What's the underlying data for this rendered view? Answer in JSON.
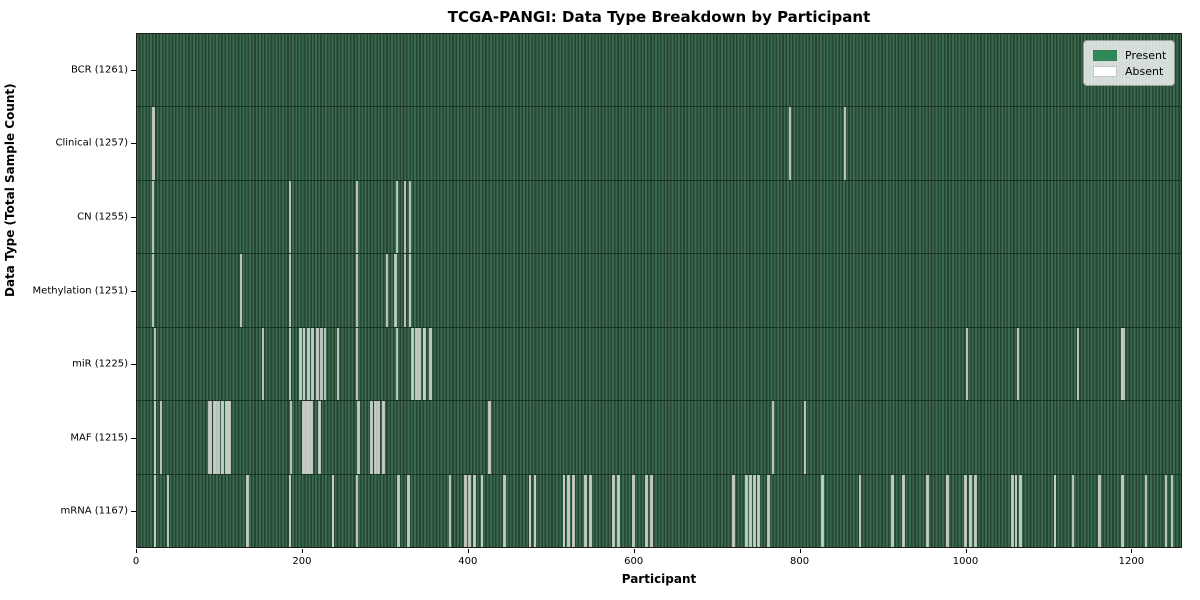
{
  "title": "TCGA-PANGI: Data Type Breakdown by Participant",
  "axes": {
    "xlabel": "Participant",
    "ylabel": "Data Type (Total Sample Count)",
    "x_ticks": [
      0,
      200,
      400,
      600,
      800,
      1000,
      1200
    ],
    "x_max": 1261
  },
  "legend": {
    "items": [
      {
        "label": "Present",
        "color": "#2e8b57"
      },
      {
        "label": "Absent",
        "color": "#ffffff"
      }
    ]
  },
  "chart_data": {
    "type": "heatmap",
    "title": "TCGA-PANGI: Data Type Breakdown by Participant",
    "xlabel": "Participant",
    "ylabel": "Data Type (Total Sample Count)",
    "x_range": [
      0,
      1261
    ],
    "legend_position": "upper right",
    "colors": {
      "present": "#2e8b57",
      "absent": "#ffffff"
    },
    "rows": [
      {
        "label": "BCR (1261)",
        "data_type": "BCR",
        "present_count": 1261,
        "absent_positions": []
      },
      {
        "label": "Clinical (1257)",
        "data_type": "Clinical",
        "present_count": 1257,
        "absent_positions": [
          18,
          19,
          788,
          854
        ]
      },
      {
        "label": "CN (1255)",
        "data_type": "CN",
        "present_count": 1255,
        "absent_positions": [
          18,
          184,
          264,
          313,
          322,
          328
        ]
      },
      {
        "label": "Methylation (1251)",
        "data_type": "Methylation",
        "present_count": 1251,
        "absent_positions": [
          18,
          124,
          184,
          265,
          301,
          311,
          312,
          322,
          328,
          329
        ]
      },
      {
        "label": "miR (1225)",
        "data_type": "miR",
        "present_count": 1225,
        "absent_positions": [
          20,
          151,
          183,
          196,
          197,
          200,
          201,
          205,
          206,
          210,
          211,
          216,
          217,
          221,
          222,
          226,
          241,
          265,
          313,
          331,
          332,
          336,
          337,
          340,
          341,
          345,
          346,
          347,
          353,
          354,
          1001,
          1063,
          1135,
          1188,
          1189,
          1191
        ]
      },
      {
        "label": "MAF (1215)",
        "data_type": "MAF",
        "present_count": 1215,
        "absent_positions": [
          20,
          21,
          28,
          86,
          87,
          88,
          92,
          93,
          94,
          97,
          98,
          101,
          102,
          103,
          106,
          107,
          109,
          110,
          111,
          185,
          199,
          200,
          201,
          203,
          204,
          205,
          206,
          207,
          209,
          210,
          219,
          220,
          266,
          267,
          282,
          283,
          286,
          287,
          290,
          291,
          296,
          297,
          424,
          425,
          767,
          806
        ]
      },
      {
        "label": "mRNA (1167)",
        "data_type": "mRNA",
        "present_count": 1167,
        "absent_positions": [
          20,
          21,
          36,
          132,
          133,
          183,
          184,
          235,
          236,
          265,
          314,
          315,
          326,
          327,
          377,
          395,
          396,
          400,
          401,
          406,
          407,
          415,
          416,
          442,
          443,
          473,
          474,
          479,
          480,
          514,
          515,
          519,
          520,
          526,
          527,
          540,
          541,
          546,
          547,
          574,
          575,
          580,
          581,
          598,
          599,
          614,
          615,
          620,
          621,
          719,
          720,
          734,
          735,
          739,
          740,
          744,
          745,
          749,
          750,
          761,
          762,
          826,
          827,
          872,
          911,
          912,
          924,
          925,
          953,
          954,
          977,
          978,
          999,
          1000,
          1005,
          1006,
          1011,
          1012,
          1056,
          1057,
          1060,
          1061,
          1065,
          1066,
          1107,
          1108,
          1129,
          1161,
          1162,
          1189,
          1190,
          1218,
          1242,
          1249
        ]
      }
    ]
  }
}
